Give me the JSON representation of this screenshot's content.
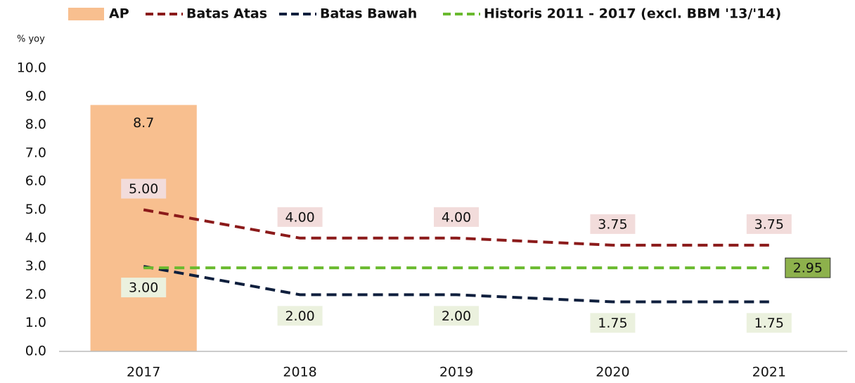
{
  "chart_data": {
    "type": "bar",
    "y_label": "% yoy",
    "categories": [
      "2017",
      "2018",
      "2019",
      "2020",
      "2021"
    ],
    "ylim": [
      0,
      10
    ],
    "yticks": [
      {
        "value": 0,
        "label": "0.0"
      },
      {
        "value": 1,
        "label": "1.0"
      },
      {
        "value": 2,
        "label": "2.0"
      },
      {
        "value": 3,
        "label": "3.0"
      },
      {
        "value": 4,
        "label": "4.0"
      },
      {
        "value": 5,
        "label": "5.0"
      },
      {
        "value": 6,
        "label": "6.0"
      },
      {
        "value": 7,
        "label": "7.0"
      },
      {
        "value": 8,
        "label": "8.0"
      },
      {
        "value": 9,
        "label": "9.0"
      },
      {
        "value": 10,
        "label": "10.0"
      }
    ],
    "grid": false,
    "series": [
      {
        "name": "AP",
        "type": "bar",
        "color": "#f8bf8f",
        "values": [
          8.7,
          null,
          null,
          null,
          null
        ]
      },
      {
        "name": "Batas Atas",
        "type": "line",
        "color": "#8b1a1a",
        "label_fill": "#f2dcdb",
        "label_side": "above",
        "values": [
          5.0,
          4.0,
          4.0,
          3.75,
          3.75
        ],
        "value_labels": [
          "5.00",
          "4.00",
          "4.00",
          "3.75",
          "3.75"
        ]
      },
      {
        "name": "Batas Bawah",
        "type": "line",
        "color": "#0f1f3d",
        "label_fill": "#ebf1de",
        "label_side": "below",
        "values": [
          3.0,
          2.0,
          2.0,
          1.75,
          1.75
        ],
        "value_labels": [
          "3.00",
          "2.00",
          "2.00",
          "1.75",
          "1.75"
        ]
      },
      {
        "name": "Historis 2011 - 2017 (excl. BBM '13/'14)",
        "type": "line",
        "color": "#6aba2f",
        "label_fill": "#8db14c",
        "label_side": "end",
        "values": [
          2.95,
          2.95,
          2.95,
          2.95,
          2.95
        ],
        "value_labels": [
          null,
          null,
          null,
          null,
          "2.95"
        ]
      }
    ]
  }
}
